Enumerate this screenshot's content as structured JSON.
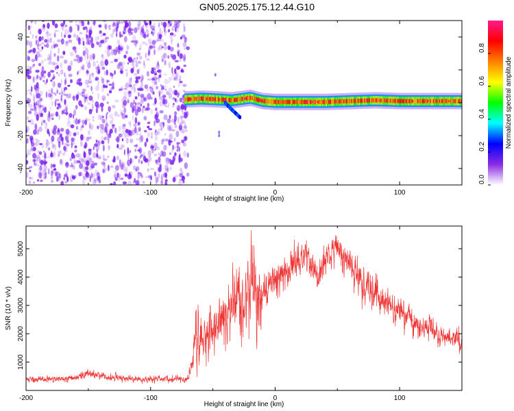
{
  "title": "GN05.2025.175.12.44.G10",
  "colors": {
    "snr_line": "#ee3333",
    "noise_purple": "#7b1ff0",
    "frame": "#000000"
  },
  "chart_data": [
    {
      "type": "heatmap",
      "xlabel": "Height of straight line (km)",
      "ylabel": "Frequency (Hz)",
      "xlim": [
        -200,
        150
      ],
      "ylim": [
        -50,
        50
      ],
      "xticks": [
        "-200",
        "-100",
        "0",
        "100"
      ],
      "xtick_values": [
        -200,
        -100,
        0,
        100
      ],
      "yticks": [
        "40",
        "20",
        "0",
        "-20",
        "-40"
      ],
      "ytick_values": [
        40,
        20,
        0,
        -20,
        -40
      ],
      "noise_region": {
        "x_from": -200,
        "x_to": -70,
        "description_level": 0.3
      },
      "signal_band": {
        "x_from": -73,
        "x_to": 150,
        "center_freq_hz": [
          [
            -73,
            2
          ],
          [
            -60,
            2.5
          ],
          [
            -45,
            2
          ],
          [
            -35,
            1.5
          ],
          [
            -20,
            3
          ],
          [
            -10,
            1
          ],
          [
            0,
            0.5
          ],
          [
            20,
            0.5
          ],
          [
            40,
            0.5
          ],
          [
            60,
            1
          ],
          [
            80,
            1.5
          ],
          [
            100,
            1
          ],
          [
            120,
            1
          ],
          [
            150,
            1
          ]
        ],
        "half_width_hz": 3,
        "peak_amplitude": 0.95
      },
      "side_branch": {
        "points": [
          [
            -40,
            0
          ],
          [
            -35,
            -4
          ],
          [
            -28,
            -9
          ]
        ]
      },
      "isolated_points": [
        [
          -45,
          -18
        ],
        [
          -45,
          -20
        ],
        [
          -48,
          17
        ]
      ],
      "colorbar": {
        "label": "Normalized spectral amplitude",
        "range": [
          0.0,
          1.0
        ],
        "ticks": [
          "0.0",
          "0.2",
          "0.4",
          "0.6",
          "0.8"
        ],
        "tick_values": [
          0.0,
          0.2,
          0.4,
          0.6,
          0.8
        ],
        "colormap": [
          "#ffffff",
          "#8a2be2",
          "#0000ff",
          "#00ffff",
          "#00ff00",
          "#ffff00",
          "#ff8000",
          "#ff0000",
          "#ff1a8c"
        ]
      }
    },
    {
      "type": "line",
      "xlabel": "Height of straight line (km)",
      "ylabel": "SNR (10 * v/v)",
      "xlim": [
        -200,
        150
      ],
      "ylim": [
        0,
        5800
      ],
      "xticks": [
        "-200",
        "-100",
        "0",
        "100"
      ],
      "xtick_values": [
        -200,
        -100,
        0,
        100
      ],
      "yticks": [
        "5000",
        "4000",
        "3000",
        "2000",
        "1000"
      ],
      "ytick_values": [
        5000,
        4000,
        3000,
        2000,
        1000
      ],
      "series": [
        {
          "envelope": [
            [
              -200,
              180,
              550
            ],
            [
              -180,
              200,
              560
            ],
            [
              -160,
              240,
              650
            ],
            [
              -150,
              300,
              850
            ],
            [
              -145,
              260,
              780
            ],
            [
              -130,
              220,
              650
            ],
            [
              -110,
              200,
              560
            ],
            [
              -90,
              200,
              560
            ],
            [
              -70,
              180,
              580
            ],
            [
              -66,
              200,
              1800
            ],
            [
              -64,
              300,
              3600
            ],
            [
              -58,
              500,
              2700
            ],
            [
              -52,
              700,
              3400
            ],
            [
              -45,
              900,
              3700
            ],
            [
              -38,
              500,
              4200
            ],
            [
              -30,
              800,
              5300
            ],
            [
              -25,
              1000,
              4700
            ],
            [
              -18,
              1200,
              5600
            ],
            [
              -15,
              600,
              5100
            ],
            [
              -10,
              2200,
              4400
            ],
            [
              -5,
              2600,
              4500
            ],
            [
              0,
              2800,
              4800
            ],
            [
              10,
              3200,
              5000
            ],
            [
              20,
              3800,
              5500
            ],
            [
              25,
              3600,
              5600
            ],
            [
              30,
              3400,
              5200
            ],
            [
              35,
              3000,
              4900
            ],
            [
              40,
              3800,
              5500
            ],
            [
              48,
              4200,
              5700
            ],
            [
              55,
              3800,
              5600
            ],
            [
              62,
              3200,
              5300
            ],
            [
              70,
              2600,
              4800
            ],
            [
              78,
              2300,
              4400
            ],
            [
              85,
              2200,
              4000
            ],
            [
              95,
              2000,
              3600
            ],
            [
              105,
              1800,
              3300
            ],
            [
              115,
              1600,
              3000
            ],
            [
              125,
              1500,
              2700
            ],
            [
              135,
              1300,
              2400
            ],
            [
              145,
              1200,
              2300
            ],
            [
              150,
              1100,
              2500
            ]
          ]
        }
      ]
    }
  ]
}
